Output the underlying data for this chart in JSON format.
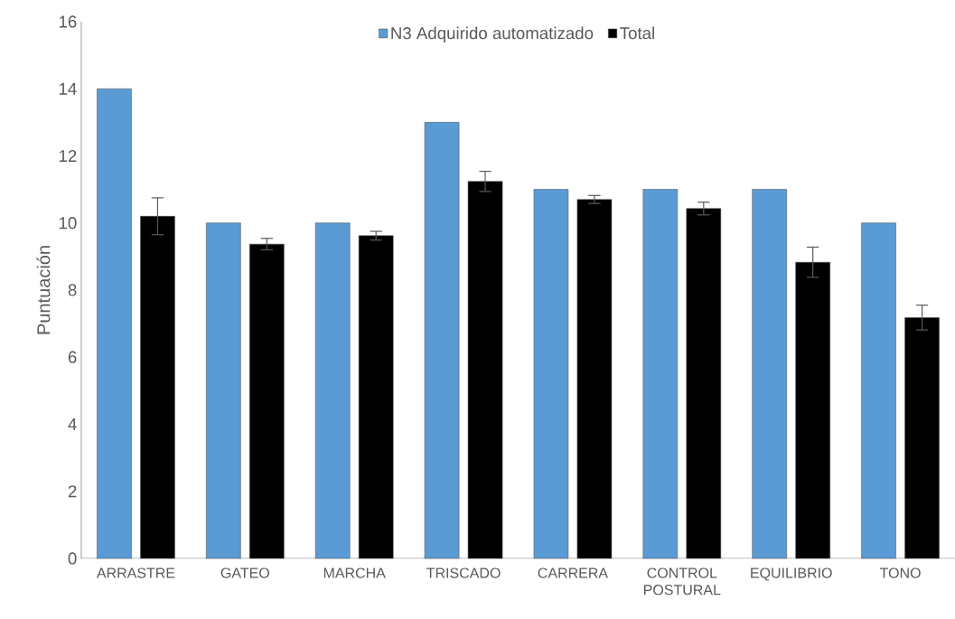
{
  "chart_data": {
    "type": "bar",
    "ylabel": "Puntuación",
    "categories": [
      "ARRASTRE",
      "GATEO",
      "MARCHA",
      "TRISCADO",
      "CARRERA",
      "CONTROL POSTURAL",
      "EQUILIBRIO",
      "TONO"
    ],
    "series": [
      {
        "name": "N3 Adquirido automatizado",
        "color": "#5b9bd5",
        "values": [
          14,
          10,
          10,
          13,
          11,
          11,
          11,
          10
        ]
      },
      {
        "name": "Total",
        "color": "#000000",
        "values": [
          10.2,
          9.37,
          9.62,
          11.24,
          10.7,
          10.43,
          8.83,
          7.18
        ],
        "errors": [
          0.55,
          0.17,
          0.13,
          0.3,
          0.12,
          0.19,
          0.45,
          0.37
        ]
      }
    ],
    "ylim": [
      0,
      16
    ],
    "yticks": [
      0,
      2,
      4,
      6,
      8,
      10,
      12,
      14,
      16
    ],
    "grid": false,
    "legend": "top"
  }
}
